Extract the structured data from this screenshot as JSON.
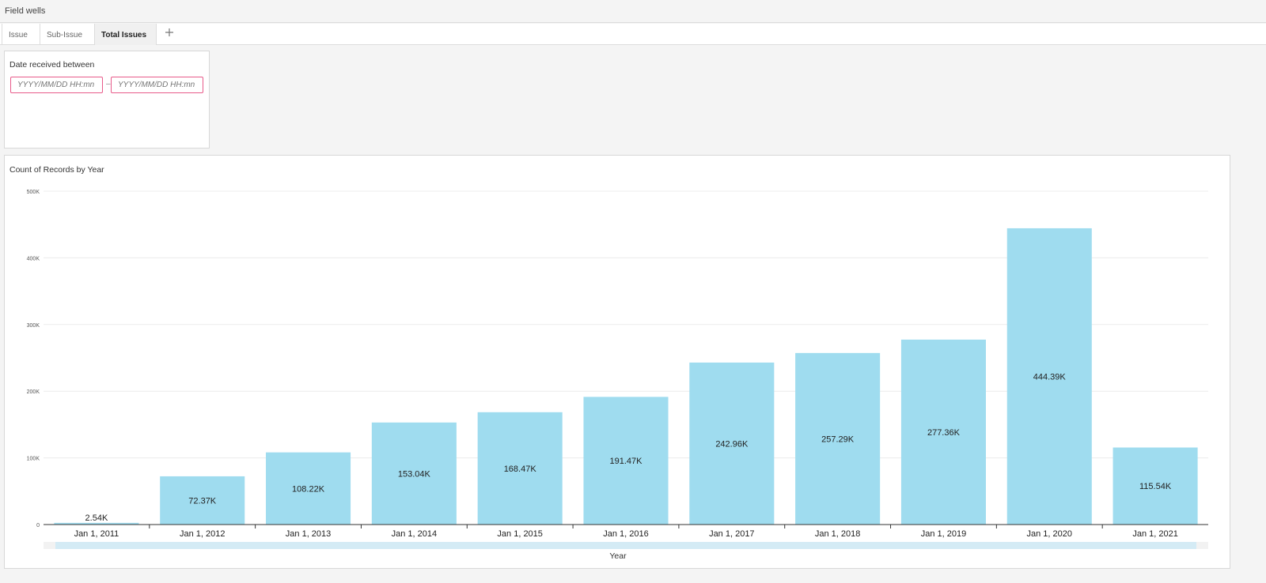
{
  "field_wells": {
    "label": "Field wells"
  },
  "tabs": [
    {
      "label": "Issue"
    },
    {
      "label": "Sub-Issue"
    },
    {
      "label": "Total Issues"
    }
  ],
  "filter": {
    "title": "Date received between",
    "start_placeholder": "YYYY/MM/DD HH:mn",
    "end_placeholder": "YYYY/MM/DD HH:mn",
    "separator": "–"
  },
  "colors": {
    "bar": "#9fdcef",
    "accent_input_border": "#e85a8a"
  },
  "icons": {
    "tab_dropdown": "chevron-down-icon",
    "add_tab": "plus-icon"
  },
  "chart_data": {
    "type": "bar",
    "title": "Count of Records by Year",
    "xlabel": "Year",
    "ylabel": "",
    "ylim": [
      0,
      500000
    ],
    "yticks": [
      0,
      100000,
      200000,
      300000,
      400000,
      500000
    ],
    "ytick_labels": [
      "0",
      "100K",
      "200K",
      "300K",
      "400K",
      "500K"
    ],
    "categories": [
      "Jan 1, 2011",
      "Jan 1, 2012",
      "Jan 1, 2013",
      "Jan 1, 2014",
      "Jan 1, 2015",
      "Jan 1, 2016",
      "Jan 1, 2017",
      "Jan 1, 2018",
      "Jan 1, 2019",
      "Jan 1, 2020",
      "Jan 1, 2021"
    ],
    "values": [
      2540,
      72370,
      108220,
      153040,
      168470,
      191470,
      242960,
      257290,
      277360,
      444390,
      115540
    ],
    "data_labels": [
      "2.54K",
      "72.37K",
      "108.22K",
      "153.04K",
      "168.47K",
      "191.47K",
      "242.96K",
      "257.29K",
      "277.36K",
      "444.39K",
      "115.54K"
    ],
    "grid": true,
    "legend": "none"
  }
}
